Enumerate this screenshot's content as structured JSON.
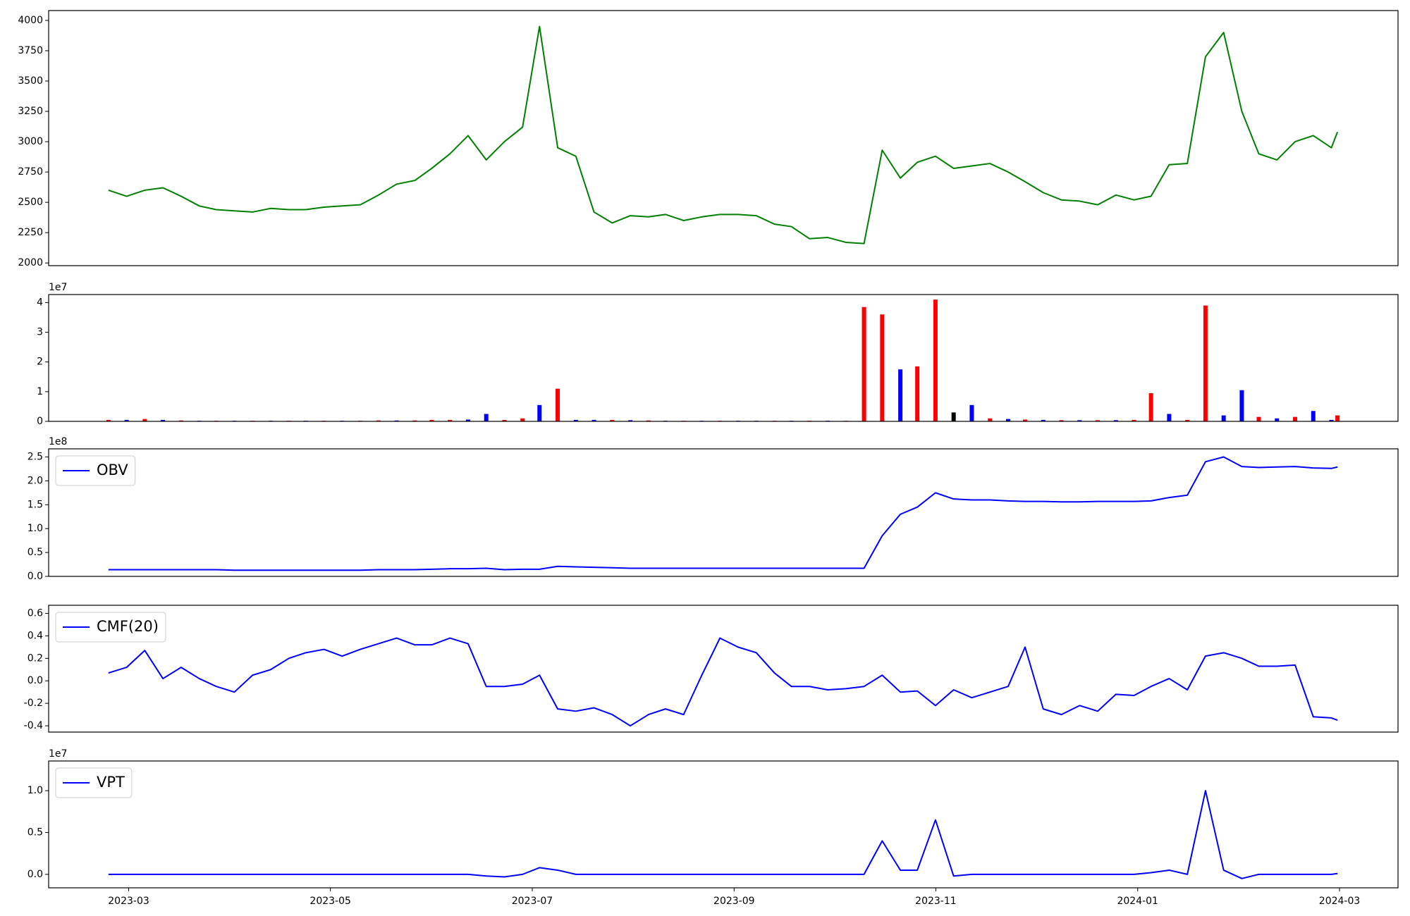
{
  "chart_data": [
    {
      "type": "line",
      "x": [
        2023.15,
        2023.165,
        2023.18,
        2023.195,
        2023.21,
        2023.225,
        2023.239,
        2023.254,
        2023.269,
        2023.284,
        2023.299,
        2023.313,
        2023.328,
        2023.343,
        2023.358,
        2023.373,
        2023.388,
        2023.403,
        2023.417,
        2023.432,
        2023.447,
        2023.462,
        2023.477,
        2023.492,
        2023.506,
        2023.521,
        2023.536,
        2023.551,
        2023.566,
        2023.581,
        2023.596,
        2023.61,
        2023.625,
        2023.64,
        2023.655,
        2023.67,
        2023.685,
        2023.7,
        2023.714,
        2023.729,
        2023.744,
        2023.759,
        2023.774,
        2023.789,
        2023.804,
        2023.818,
        2023.833,
        2023.848,
        2023.863,
        2023.878,
        2023.893,
        2023.907,
        2023.922,
        2023.937,
        2023.952,
        2023.967,
        2023.982,
        2023.997,
        2024.011,
        2024.026,
        2024.041,
        2024.056,
        2024.071,
        2024.086,
        2024.1,
        2024.115,
        2024.13,
        2024.145,
        2024.16,
        2024.165
      ],
      "series": [
        {
          "color": "#008000",
          "values": [
            2600,
            2550,
            2600,
            2620,
            2550,
            2470,
            2440,
            2430,
            2420,
            2450,
            2440,
            2440,
            2460,
            2470,
            2480,
            2560,
            2650,
            2680,
            2780,
            2900,
            3050,
            2850,
            3000,
            3120,
            3950,
            2950,
            2880,
            2420,
            2330,
            2390,
            2380,
            2400,
            2350,
            2380,
            2400,
            2400,
            2390,
            2320,
            2300,
            2200,
            2210,
            2170,
            2160,
            2930,
            2700,
            2830,
            2880,
            2780,
            2800,
            2820,
            2750,
            2670,
            2580,
            2520,
            2510,
            2480,
            2560,
            2520,
            2550,
            2810,
            2820,
            3700,
            3900,
            3250,
            2900,
            2850,
            3000,
            3050,
            2950,
            3080
          ]
        }
      ],
      "xlim": [
        2023.1006,
        2024.215
      ],
      "ylim": [
        1978,
        4081
      ],
      "yticks": [
        2000,
        2250,
        2500,
        2750,
        3000,
        3250,
        3500,
        3750,
        4000
      ]
    },
    {
      "type": "bar",
      "offset_label": "1e7",
      "x": [
        2023.15,
        2023.165,
        2023.18,
        2023.195,
        2023.21,
        2023.225,
        2023.239,
        2023.254,
        2023.269,
        2023.284,
        2023.299,
        2023.313,
        2023.328,
        2023.343,
        2023.358,
        2023.373,
        2023.388,
        2023.403,
        2023.417,
        2023.432,
        2023.447,
        2023.462,
        2023.477,
        2023.492,
        2023.506,
        2023.521,
        2023.536,
        2023.551,
        2023.566,
        2023.581,
        2023.596,
        2023.61,
        2023.625,
        2023.64,
        2023.655,
        2023.67,
        2023.685,
        2023.7,
        2023.714,
        2023.729,
        2023.744,
        2023.759,
        2023.774,
        2023.789,
        2023.804,
        2023.818,
        2023.833,
        2023.848,
        2023.863,
        2023.878,
        2023.893,
        2023.907,
        2023.922,
        2023.937,
        2023.952,
        2023.967,
        2023.982,
        2023.997,
        2024.011,
        2024.026,
        2024.041,
        2024.056,
        2024.071,
        2024.086,
        2024.1,
        2024.115,
        2024.13,
        2024.145,
        2024.16,
        2024.165
      ],
      "values": [
        0.05,
        0.05,
        0.08,
        0.05,
        0.03,
        0.02,
        0.02,
        0.02,
        0.02,
        0.02,
        0.02,
        0.02,
        0.02,
        0.02,
        0.02,
        0.03,
        0.03,
        0.03,
        0.05,
        0.05,
        0.06,
        0.25,
        0.05,
        0.1,
        0.55,
        1.1,
        0.05,
        0.05,
        0.05,
        0.04,
        0.03,
        0.02,
        0.02,
        0.02,
        0.02,
        0.02,
        0.02,
        0.02,
        0.02,
        0.02,
        0.02,
        0.02,
        3.85,
        3.6,
        1.75,
        1.85,
        4.1,
        0.3,
        0.55,
        0.1,
        0.08,
        0.06,
        0.05,
        0.04,
        0.04,
        0.04,
        0.04,
        0.05,
        0.95,
        0.25,
        0.05,
        3.9,
        0.2,
        1.05,
        0.15,
        0.1,
        0.15,
        0.35,
        0.05,
        0.2
      ],
      "colors": [
        "#ff0000",
        "#0000ff",
        "#ff0000",
        "#0000ff",
        "#ff0000",
        "#0000ff",
        "#ff0000",
        "#0000ff",
        "#ff0000",
        "#0000ff",
        "#ff0000",
        "#0000ff",
        "#ff0000",
        "#0000ff",
        "#ff0000",
        "#ff0000",
        "#0000ff",
        "#ff0000",
        "#ff0000",
        "#ff0000",
        "#0000ff",
        "#0000ff",
        "#ff0000",
        "#ff0000",
        "#0000ff",
        "#ff0000",
        "#0000ff",
        "#0000ff",
        "#ff0000",
        "#0000ff",
        "#ff0000",
        "#0000ff",
        "#ff0000",
        "#0000ff",
        "#ff0000",
        "#0000ff",
        "#0000ff",
        "#ff0000",
        "#0000ff",
        "#ff0000",
        "#0000ff",
        "#ff0000",
        "#ff0000",
        "#ff0000",
        "#0000ff",
        "#ff0000",
        "#ff0000",
        "#000000",
        "#0000ff",
        "#ff0000",
        "#0000ff",
        "#ff0000",
        "#0000ff",
        "#ff0000",
        "#0000ff",
        "#ff0000",
        "#0000ff",
        "#ff0000",
        "#ff0000",
        "#0000ff",
        "#ff0000",
        "#ff0000",
        "#0000ff",
        "#0000ff",
        "#ff0000",
        "#0000ff",
        "#ff0000",
        "#0000ff",
        "#0000ff",
        "#ff0000"
      ],
      "xlim": [
        2023.1006,
        2024.215
      ],
      "ylim": [
        0,
        4.27
      ],
      "yticks": [
        0,
        1,
        2,
        3,
        4
      ]
    },
    {
      "type": "line",
      "offset_label": "1e8",
      "legend": "upper left",
      "x": [
        2023.15,
        2023.165,
        2023.18,
        2023.195,
        2023.21,
        2023.225,
        2023.239,
        2023.254,
        2023.269,
        2023.284,
        2023.299,
        2023.313,
        2023.328,
        2023.343,
        2023.358,
        2023.373,
        2023.388,
        2023.403,
        2023.417,
        2023.432,
        2023.447,
        2023.462,
        2023.477,
        2023.492,
        2023.506,
        2023.521,
        2023.536,
        2023.551,
        2023.566,
        2023.581,
        2023.596,
        2023.61,
        2023.625,
        2023.64,
        2023.655,
        2023.67,
        2023.685,
        2023.7,
        2023.714,
        2023.729,
        2023.744,
        2023.759,
        2023.774,
        2023.789,
        2023.804,
        2023.818,
        2023.833,
        2023.848,
        2023.863,
        2023.878,
        2023.893,
        2023.907,
        2023.922,
        2023.937,
        2023.952,
        2023.967,
        2023.982,
        2023.997,
        2024.011,
        2024.026,
        2024.041,
        2024.056,
        2024.071,
        2024.086,
        2024.1,
        2024.115,
        2024.13,
        2024.145,
        2024.16,
        2024.165
      ],
      "series": [
        {
          "name": "OBV",
          "color": "#0000ff",
          "values": [
            0.14,
            0.14,
            0.14,
            0.14,
            0.14,
            0.14,
            0.14,
            0.13,
            0.13,
            0.13,
            0.13,
            0.13,
            0.13,
            0.13,
            0.13,
            0.14,
            0.14,
            0.14,
            0.15,
            0.16,
            0.16,
            0.17,
            0.14,
            0.15,
            0.15,
            0.21,
            0.2,
            0.19,
            0.18,
            0.17,
            0.17,
            0.17,
            0.17,
            0.17,
            0.17,
            0.17,
            0.17,
            0.17,
            0.17,
            0.17,
            0.17,
            0.17,
            0.17,
            0.85,
            1.3,
            1.45,
            1.75,
            1.62,
            1.6,
            1.6,
            1.58,
            1.57,
            1.57,
            1.56,
            1.56,
            1.57,
            1.57,
            1.57,
            1.58,
            1.65,
            1.7,
            2.4,
            2.5,
            2.3,
            2.28,
            2.29,
            2.3,
            2.27,
            2.26,
            2.29
          ]
        }
      ],
      "xlim": [
        2023.1006,
        2024.215
      ],
      "ylim": [
        0,
        2.67
      ],
      "yticks": [
        {
          "value": 0,
          "label": "0.0"
        },
        0.5,
        {
          "value": 1,
          "label": "1.0"
        },
        1.5,
        {
          "value": 2,
          "label": "2.0"
        },
        2.5
      ]
    },
    {
      "type": "line",
      "legend": "upper left",
      "x": [
        2023.15,
        2023.165,
        2023.18,
        2023.195,
        2023.21,
        2023.225,
        2023.239,
        2023.254,
        2023.269,
        2023.284,
        2023.299,
        2023.313,
        2023.328,
        2023.343,
        2023.358,
        2023.373,
        2023.388,
        2023.403,
        2023.417,
        2023.432,
        2023.447,
        2023.462,
        2023.477,
        2023.492,
        2023.506,
        2023.521,
        2023.536,
        2023.551,
        2023.566,
        2023.581,
        2023.596,
        2023.61,
        2023.625,
        2023.64,
        2023.655,
        2023.67,
        2023.685,
        2023.7,
        2023.714,
        2023.729,
        2023.744,
        2023.759,
        2023.774,
        2023.789,
        2023.804,
        2023.818,
        2023.833,
        2023.848,
        2023.863,
        2023.878,
        2023.893,
        2023.907,
        2023.922,
        2023.937,
        2023.952,
        2023.967,
        2023.982,
        2023.997,
        2024.011,
        2024.026,
        2024.041,
        2024.056,
        2024.071,
        2024.086,
        2024.1,
        2024.115,
        2024.13,
        2024.145,
        2024.16,
        2024.165
      ],
      "series": [
        {
          "name": "CMF(20)",
          "color": "#0000ff",
          "values": [
            0.07,
            0.12,
            0.27,
            0.02,
            0.12,
            0.02,
            -0.05,
            -0.1,
            0.05,
            0.1,
            0.2,
            0.25,
            0.28,
            0.22,
            0.28,
            0.33,
            0.38,
            0.32,
            0.32,
            0.38,
            0.33,
            -0.05,
            -0.05,
            -0.03,
            0.05,
            -0.25,
            -0.27,
            -0.24,
            -0.3,
            -0.4,
            -0.3,
            -0.25,
            -0.3,
            0.05,
            0.38,
            0.3,
            0.25,
            0.07,
            -0.05,
            -0.05,
            -0.08,
            -0.07,
            -0.05,
            0.05,
            -0.1,
            -0.09,
            -0.22,
            -0.08,
            -0.15,
            -0.1,
            -0.05,
            0.3,
            -0.25,
            -0.3,
            -0.22,
            -0.27,
            -0.12,
            -0.13,
            -0.05,
            0.02,
            -0.08,
            0.22,
            0.25,
            0.2,
            0.13,
            0.13,
            0.14,
            -0.32,
            -0.33,
            -0.35
          ]
        }
      ],
      "xlim": [
        2023.1006,
        2024.215
      ],
      "ylim": [
        -0.456,
        0.672
      ],
      "yticks": [
        -0.4,
        -0.2,
        {
          "value": 0,
          "label": "0.0"
        },
        0.2,
        0.4,
        0.6
      ]
    },
    {
      "type": "line",
      "offset_label": "1e7",
      "legend": "upper left",
      "x": [
        2023.15,
        2023.165,
        2023.18,
        2023.195,
        2023.21,
        2023.225,
        2023.239,
        2023.254,
        2023.269,
        2023.284,
        2023.299,
        2023.313,
        2023.328,
        2023.343,
        2023.358,
        2023.373,
        2023.388,
        2023.403,
        2023.417,
        2023.432,
        2023.447,
        2023.462,
        2023.477,
        2023.492,
        2023.506,
        2023.521,
        2023.536,
        2023.551,
        2023.566,
        2023.581,
        2023.596,
        2023.61,
        2023.625,
        2023.64,
        2023.655,
        2023.67,
        2023.685,
        2023.7,
        2023.714,
        2023.729,
        2023.744,
        2023.759,
        2023.774,
        2023.789,
        2023.804,
        2023.818,
        2023.833,
        2023.848,
        2023.863,
        2023.878,
        2023.893,
        2023.907,
        2023.922,
        2023.937,
        2023.952,
        2023.967,
        2023.982,
        2023.997,
        2024.011,
        2024.026,
        2024.041,
        2024.056,
        2024.071,
        2024.086,
        2024.1,
        2024.115,
        2024.13,
        2024.145,
        2024.16,
        2024.165
      ],
      "series": [
        {
          "name": "VPT",
          "color": "#0000ff",
          "values": [
            0,
            0,
            0,
            0,
            0,
            0,
            0,
            0,
            0,
            0,
            0,
            0,
            0,
            0,
            0,
            0,
            0,
            0,
            0,
            0,
            0,
            -0.02,
            -0.03,
            0,
            0.08,
            0.05,
            0,
            0,
            0,
            0,
            0,
            0,
            0,
            0,
            0,
            0,
            0,
            0,
            0,
            0,
            0,
            0,
            0,
            0.4,
            0.05,
            0.05,
            0.65,
            -0.02,
            0,
            0,
            0,
            0,
            0,
            0,
            0,
            0,
            0,
            0,
            0.02,
            0.05,
            0,
            1.0,
            0.05,
            -0.05,
            0,
            0,
            0,
            0,
            0,
            0.01
          ]
        }
      ],
      "xlim": [
        2023.1006,
        2024.215
      ],
      "ylim": [
        -0.161,
        1.355
      ],
      "yticks": [
        {
          "value": 0,
          "label": "0.0"
        },
        0.5,
        {
          "value": 1,
          "label": "1.0"
        }
      ],
      "xticks": [
        {
          "value": 2023.1667,
          "label": "2023-03"
        },
        {
          "value": 2023.3333,
          "label": "2023-05"
        },
        {
          "value": 2023.5,
          "label": "2023-07"
        },
        {
          "value": 2023.6667,
          "label": "2023-09"
        },
        {
          "value": 2023.8333,
          "label": "2023-11"
        },
        {
          "value": 2024.0,
          "label": "2024-01"
        },
        {
          "value": 2024.1667,
          "label": "2024-03"
        }
      ]
    }
  ]
}
